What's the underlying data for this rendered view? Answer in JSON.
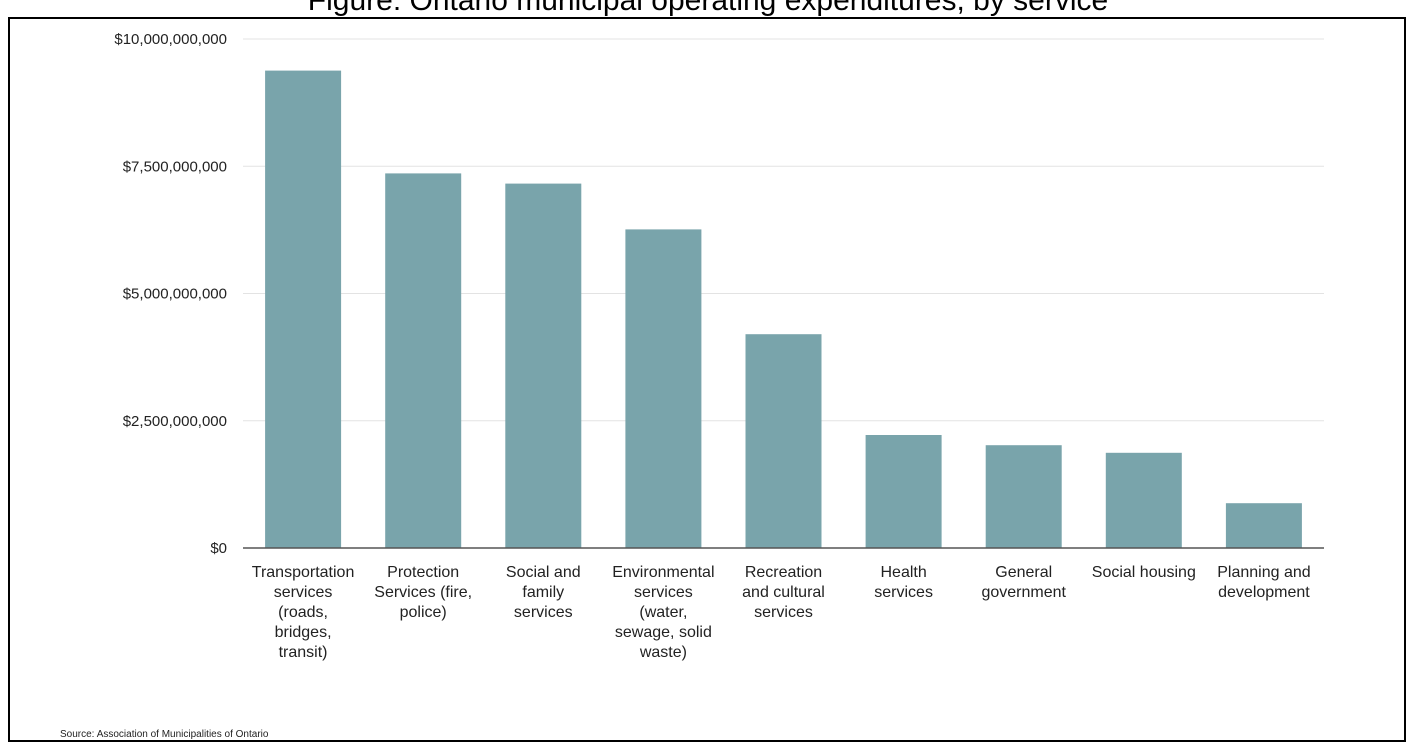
{
  "header": {
    "partial_title": "Figure: Ontario municipal operating expenditures, by service"
  },
  "source_note": "Source: Association of Municipalities of Ontario",
  "colors": {
    "bar": "#79a4ab",
    "grid": "#e3e3e3",
    "axis": "#555555"
  },
  "chart_data": {
    "type": "bar",
    "title": "",
    "xlabel": "",
    "ylabel": "",
    "ylim": [
      0,
      10000000000
    ],
    "yticks": [
      0,
      2500000000,
      5000000000,
      7500000000,
      10000000000
    ],
    "ytick_labels": [
      "$0",
      "$2,500,000,000",
      "$5,000,000,000",
      "$7,500,000,000",
      "$10,000,000,000"
    ],
    "grid": true,
    "categories": [
      "Transportation services (roads, bridges, transit)",
      "Protection Services (fire, police)",
      "Social and family services",
      "Environmental services (water, sewage, solid waste)",
      "Recreation and cultural services",
      "Health services",
      "General government",
      "Social housing",
      "Planning and development"
    ],
    "category_lines": [
      [
        "Transportation",
        "services",
        "(roads,",
        "bridges,",
        "transit)"
      ],
      [
        "Protection",
        "Services (fire,",
        "police)"
      ],
      [
        "Social and",
        "family",
        "services"
      ],
      [
        "Environmental",
        "services",
        "(water,",
        "sewage, solid",
        "waste)"
      ],
      [
        "Recreation",
        "and cultural",
        "services"
      ],
      [
        "Health",
        "services"
      ],
      [
        "General",
        "government"
      ],
      [
        "Social housing"
      ],
      [
        "Planning and",
        "development"
      ]
    ],
    "values": [
      9380000000,
      7360000000,
      7160000000,
      6260000000,
      4200000000,
      2220000000,
      2020000000,
      1870000000,
      880000000
    ]
  }
}
